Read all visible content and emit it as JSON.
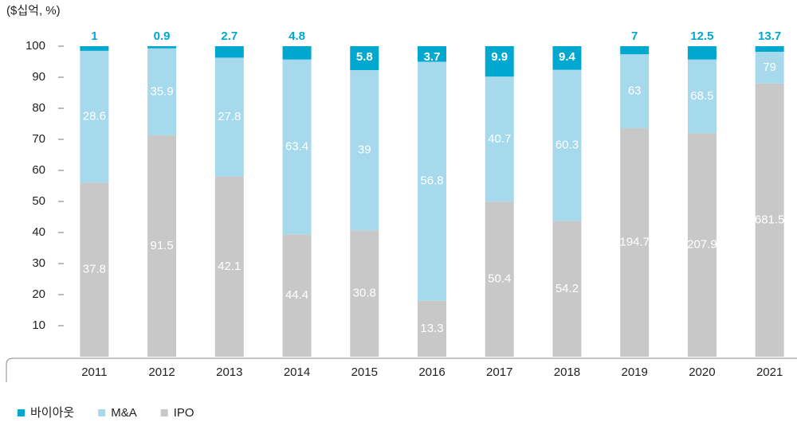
{
  "chart_data": {
    "type": "bar",
    "stacked": true,
    "unit_label": "($십억, %)",
    "categories": [
      "2011",
      "2012",
      "2013",
      "2014",
      "2015",
      "2016",
      "2017",
      "2018",
      "2019",
      "2020",
      "2021"
    ],
    "series": [
      {
        "name": "바이아웃",
        "color": "#00a7cf",
        "values": [
          1.5,
          0.7,
          3.7,
          4.3,
          7.7,
          5.0,
          9.8,
          7.6,
          2.6,
          4.3,
          1.8
        ],
        "amounts": [
          1.0,
          0.9,
          2.7,
          4.8,
          5.8,
          3.7,
          9.9,
          9.4,
          7.0,
          12.5,
          13.7
        ]
      },
      {
        "name": "M&A",
        "color": "#a6d9ec",
        "values": [
          42.4,
          28.0,
          38.3,
          56.3,
          51.6,
          77.0,
          40.3,
          48.7,
          23.8,
          23.7,
          10.2
        ],
        "amounts": [
          28.6,
          35.9,
          27.8,
          63.4,
          39.0,
          56.8,
          40.7,
          60.3,
          63.0,
          68.5,
          79.0
        ]
      },
      {
        "name": "IPO",
        "color": "#c8c8c8",
        "values": [
          56.1,
          71.3,
          58.0,
          39.4,
          40.7,
          18.0,
          49.9,
          43.7,
          73.6,
          72.0,
          88.0
        ],
        "amounts": [
          37.8,
          91.5,
          42.1,
          44.4,
          30.8,
          13.3,
          50.4,
          54.2,
          194.7,
          207.9,
          681.5
        ]
      }
    ],
    "ylim": [
      0,
      100
    ],
    "yticks": [
      10,
      20,
      30,
      40,
      50,
      60,
      70,
      80,
      90,
      100
    ],
    "legend": "bottom-left"
  }
}
